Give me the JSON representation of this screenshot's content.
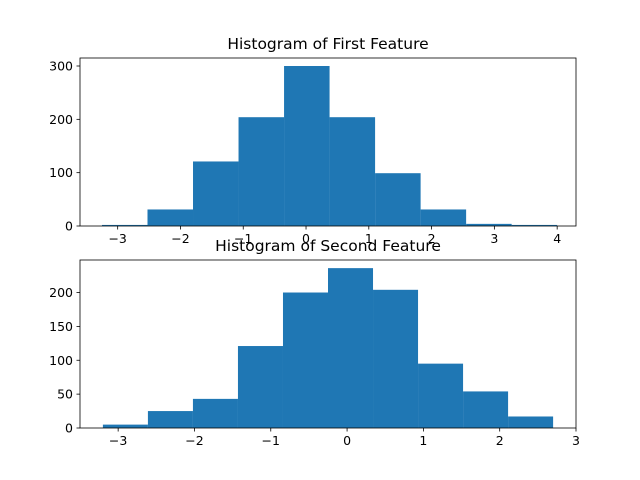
{
  "chart_data": [
    {
      "type": "bar",
      "title": "Histogram of First Feature",
      "xlabel": "",
      "ylabel": "",
      "bin_edges": [
        -3.25,
        -2.525,
        -1.8,
        -1.075,
        -0.35,
        0.375,
        1.1,
        1.825,
        2.55,
        3.275,
        4.0
      ],
      "values": [
        2,
        31,
        121,
        204,
        300,
        204,
        99,
        31,
        4,
        2
      ],
      "xlim": [
        -3.6,
        4.3
      ],
      "ylim": [
        0,
        315
      ],
      "xticks": [
        -3,
        -2,
        -1,
        0,
        1,
        2,
        3,
        4
      ],
      "yticks": [
        0,
        100,
        200,
        300
      ],
      "grid": false,
      "color": "#1f77b4"
    },
    {
      "type": "bar",
      "title": "Histogram of Second Feature",
      "xlabel": "",
      "ylabel": "",
      "bin_edges": [
        -3.2,
        -2.61,
        -2.02,
        -1.43,
        -0.84,
        -0.25,
        0.34,
        0.93,
        1.52,
        2.11,
        2.7
      ],
      "values": [
        5,
        25,
        43,
        121,
        200,
        236,
        204,
        95,
        54,
        17
      ],
      "xlim": [
        -3.5,
        3.0
      ],
      "ylim": [
        0,
        248
      ],
      "xticks": [
        -3,
        -2,
        -1,
        0,
        1,
        2,
        3
      ],
      "yticks": [
        0,
        50,
        100,
        150,
        200
      ],
      "grid": false,
      "color": "#1f77b4"
    }
  ]
}
